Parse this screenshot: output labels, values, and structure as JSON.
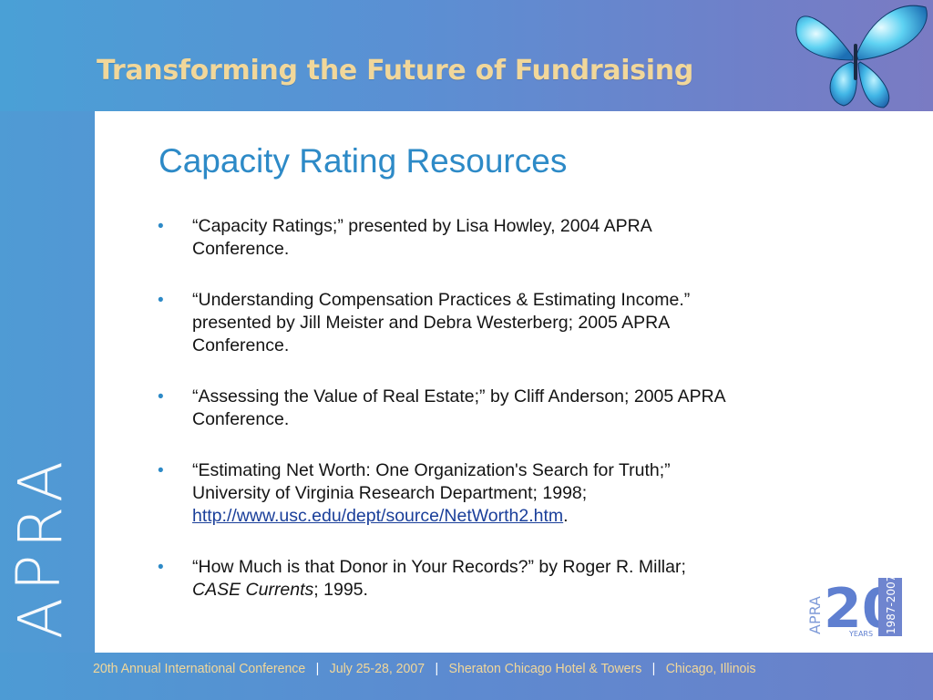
{
  "header": {
    "title": "Transforming the Future of Fundraising"
  },
  "slide": {
    "title": "Capacity Rating Resources",
    "bullets": [
      {
        "line1": "“Capacity Ratings;” presented by Lisa Howley, 2004 APRA",
        "line2": "Conference."
      },
      {
        "line1": "“Understanding Compensation Practices & Estimating Income.”",
        "line2": "presented by Jill Meister and Debra Westerberg; 2005 APRA",
        "line3": "Conference."
      },
      {
        "line1": "“Assessing the Value of Real Estate;” by Cliff Anderson; 2005 APRA",
        "line2": "Conference."
      },
      {
        "line1": "“Estimating Net Worth: One Organization's Search for Truth;”",
        "line2": "University of Virginia Research Department; 1998;",
        "link": "http://www.usc.edu/dept/source/NetWorth2.htm",
        "after_link": "."
      },
      {
        "line1": "“How Much is that Donor in Your Records?” by Roger R. Millar;",
        "italic": "CASE Currents",
        "after_italic": "; 1995."
      }
    ],
    "bullet_glyph": "•"
  },
  "side_logo": {
    "letters": [
      "A",
      "P",
      "R",
      "A"
    ]
  },
  "anniversary_logo": {
    "apra": "APRA",
    "number": "20",
    "years": "YEARS",
    "range": "1987-2007"
  },
  "footer": {
    "conference": "20th Annual International Conference",
    "dates": "July 25-28, 2007",
    "venue": "Sheraton Chicago Hotel & Towers",
    "city": "Chicago, Illinois",
    "separator": "|"
  },
  "colors": {
    "accent": "#2d8ac7",
    "header_text": "#f1d79a",
    "body_text": "#141414",
    "link": "#1a3f9a"
  }
}
